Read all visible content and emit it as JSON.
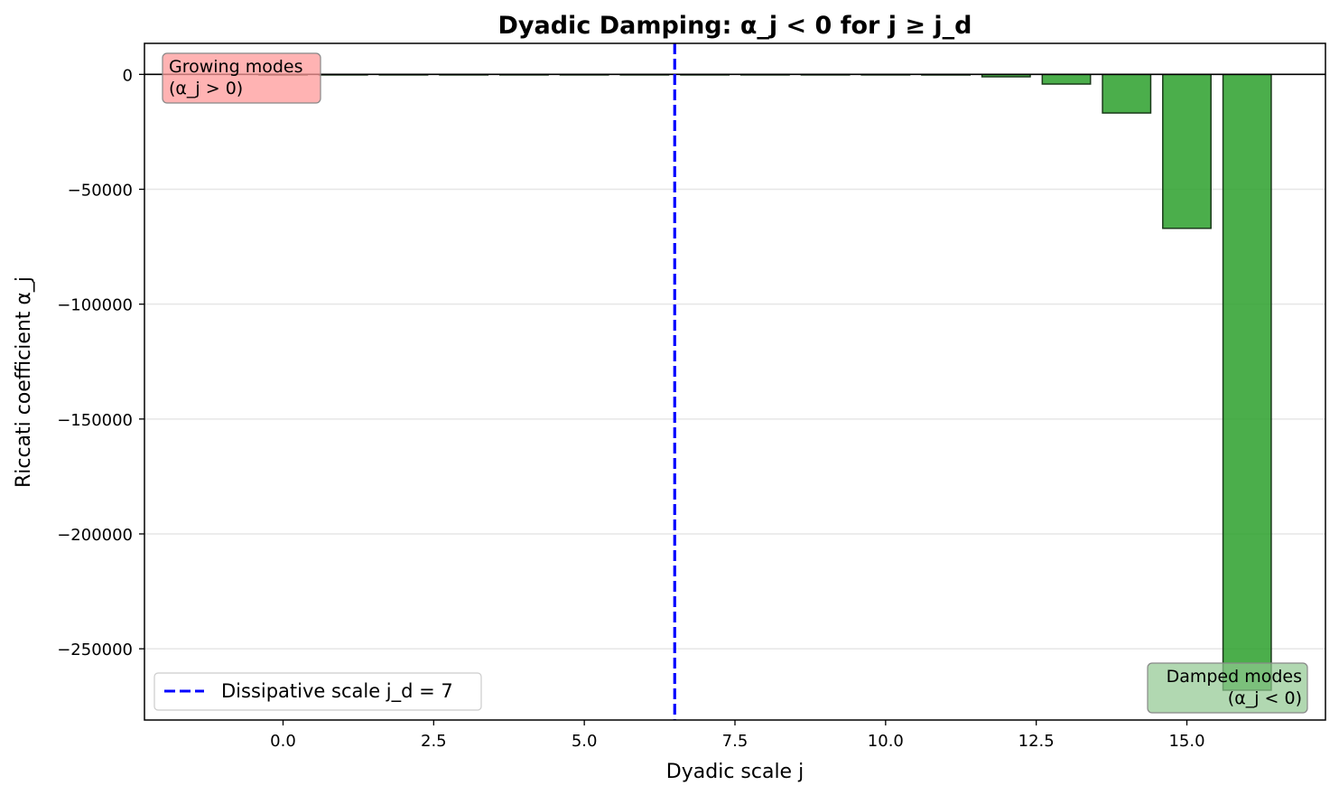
{
  "chart_data": {
    "type": "bar",
    "title": "Dyadic Damping: α_j < 0 for j ≥ j_d",
    "xlabel": "Dyadic scale j",
    "ylabel": "Riccati coefficient α_j",
    "x": [
      0,
      1,
      2,
      3,
      4,
      5,
      6,
      7,
      8,
      9,
      10,
      11,
      12,
      13,
      14,
      15,
      16
    ],
    "values": [
      0,
      0,
      0,
      0,
      0,
      0,
      0,
      0,
      0,
      0,
      0,
      -260,
      -1050,
      -4200,
      -16800,
      -67000,
      -268000
    ],
    "xlim": [
      -2.3,
      17.3
    ],
    "ylim": [
      -281000,
      13500
    ],
    "xticks": [
      0.0,
      2.5,
      5.0,
      7.5,
      10.0,
      12.5,
      15.0
    ],
    "xtick_labels": [
      "0.0",
      "2.5",
      "5.0",
      "7.5",
      "10.0",
      "12.5",
      "15.0"
    ],
    "yticks": [
      0,
      -50000,
      -100000,
      -150000,
      -200000,
      -250000
    ],
    "ytick_labels": [
      "0",
      "−50000",
      "−100000",
      "−150000",
      "−200000",
      "−250000"
    ],
    "bar_width": 0.8,
    "bar_color": "#2ca02c",
    "bar_edge_color": "#1a3a1a",
    "grid": "y",
    "zero_line": true,
    "vline": {
      "x": 6.5,
      "label": "Dissipative scale j_d = 7",
      "color": "#0000ff",
      "style": "dashed"
    },
    "legend": {
      "placement": "lower-left",
      "entries": [
        "Dissipative scale j_d = 7"
      ]
    },
    "annotations": [
      {
        "lines": [
          "Growing modes",
          "(α_j > 0)"
        ],
        "placement": "top-left",
        "color": "#ff9999"
      },
      {
        "lines": [
          "Damped modes",
          "(α_j < 0)"
        ],
        "placement": "bottom-right",
        "color": "#90c890"
      }
    ]
  }
}
